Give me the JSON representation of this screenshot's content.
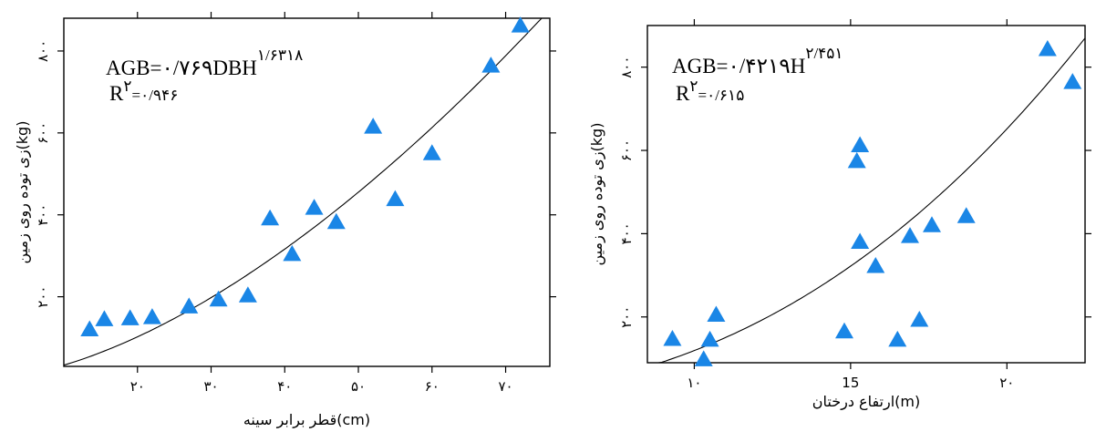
{
  "chart_data": [
    {
      "type": "scatter",
      "xlabel": "قطر برابر سینه(cm)",
      "ylabel": "زی توده روی زمین(kg)",
      "xlim": [
        10,
        76
      ],
      "ylim": [
        30,
        880
      ],
      "x_ticks": [
        20,
        30,
        40,
        50,
        60,
        70
      ],
      "x_tick_labels": [
        "۲۰",
        "۳۰",
        "۴۰",
        "۵۰",
        "۶۰",
        "۷۰"
      ],
      "y_ticks": [
        200,
        400,
        600,
        800
      ],
      "y_tick_labels": [
        "۲۰۰",
        "۴۰۰",
        "۶۰۰",
        "۸۰۰"
      ],
      "equation": {
        "main": "AGB=۰/۷۶۹DBH",
        "exponent": "۱/۶۳۱۸",
        "r2_main": "R",
        "r2_sup": "۲",
        "r2_value": "=۰/۹۴۶"
      },
      "fit": {
        "form": "power",
        "coef": 0.769,
        "exp": 1.6318
      },
      "series": [
        {
          "marker": "triangle",
          "color": "#1a86e6",
          "points": [
            {
              "x": 13.5,
              "y": 120
            },
            {
              "x": 15.5,
              "y": 145
            },
            {
              "x": 19,
              "y": 147
            },
            {
              "x": 22,
              "y": 150
            },
            {
              "x": 27,
              "y": 176
            },
            {
              "x": 31,
              "y": 193
            },
            {
              "x": 35,
              "y": 203
            },
            {
              "x": 38,
              "y": 391
            },
            {
              "x": 41,
              "y": 304
            },
            {
              "x": 44,
              "y": 417
            },
            {
              "x": 47,
              "y": 382
            },
            {
              "x": 52,
              "y": 615
            },
            {
              "x": 55,
              "y": 438
            },
            {
              "x": 60,
              "y": 550
            },
            {
              "x": 68,
              "y": 764
            },
            {
              "x": 72,
              "y": 862
            }
          ]
        }
      ]
    },
    {
      "type": "scatter",
      "xlabel": "ارتفاع درختان(m)",
      "ylabel": "زی توده روی زمین(kg)",
      "xlim": [
        8.5,
        22.5
      ],
      "ylim": [
        90,
        900
      ],
      "x_ticks": [
        10,
        15,
        20
      ],
      "x_tick_labels": [
        "۱۰",
        "15",
        "۲۰"
      ],
      "y_ticks": [
        200,
        400,
        600,
        800
      ],
      "y_tick_labels": [
        "۲۰۰",
        "۴۰۰",
        "۶۰۰",
        "۸۰۰"
      ],
      "equation": {
        "main": "AGB=۰/۴۲۱۹H",
        "exponent": "۲/۴۵۱",
        "r2_main": "R",
        "r2_sup": "۲",
        "r2_value": "=۰/۶۱۵"
      },
      "fit": {
        "form": "power",
        "coef": 0.4219,
        "exp": 2.451
      },
      "series": [
        {
          "marker": "triangle",
          "color": "#1a86e6",
          "points": [
            {
              "x": 9.3,
              "y": 147
            },
            {
              "x": 10.3,
              "y": 98
            },
            {
              "x": 10.5,
              "y": 145
            },
            {
              "x": 10.7,
              "y": 205
            },
            {
              "x": 14.8,
              "y": 165
            },
            {
              "x": 15.2,
              "y": 574
            },
            {
              "x": 15.3,
              "y": 612
            },
            {
              "x": 15.3,
              "y": 380
            },
            {
              "x": 15.8,
              "y": 322
            },
            {
              "x": 16.5,
              "y": 145
            },
            {
              "x": 16.9,
              "y": 394
            },
            {
              "x": 17.2,
              "y": 193
            },
            {
              "x": 17.6,
              "y": 420
            },
            {
              "x": 18.7,
              "y": 442
            },
            {
              "x": 21.3,
              "y": 843
            },
            {
              "x": 22.1,
              "y": 764
            }
          ]
        }
      ]
    }
  ]
}
